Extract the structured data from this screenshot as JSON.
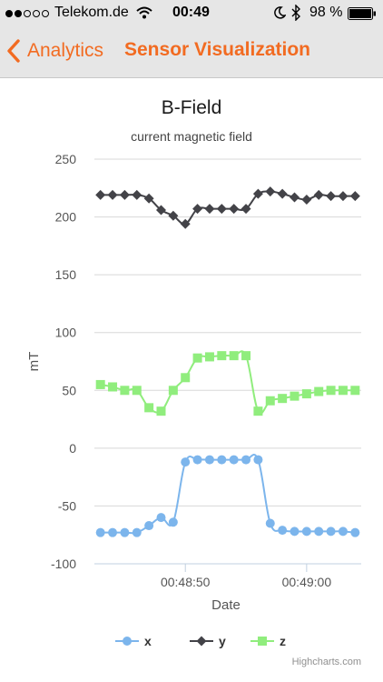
{
  "status_bar": {
    "carrier": "Telekom.de",
    "time": "00:49",
    "battery": "98 %",
    "signal_bars": 2,
    "icons": [
      "signal-dots",
      "wifi-icon",
      "moon-icon",
      "bluetooth-icon",
      "battery-icon"
    ]
  },
  "nav": {
    "back_label": "Analytics",
    "title": "Sensor Visualization",
    "accent_color": "#f26b21"
  },
  "chart_data": {
    "type": "line",
    "title": "B-Field",
    "subtitle": "current magnetic field",
    "xlabel": "Date",
    "ylabel": "mT",
    "ylim": [
      -100,
      250
    ],
    "yticks": [
      -100,
      -50,
      0,
      50,
      100,
      150,
      200,
      250
    ],
    "xticks": [
      "00:48:50",
      "00:49:00"
    ],
    "x": [
      "00:48:43",
      "00:48:44",
      "00:48:45",
      "00:48:46",
      "00:48:47",
      "00:48:48",
      "00:48:49",
      "00:48:50",
      "00:48:51",
      "00:48:52",
      "00:48:53",
      "00:48:54",
      "00:48:55",
      "00:48:56",
      "00:48:57",
      "00:48:58",
      "00:48:59",
      "00:49:00",
      "00:49:01",
      "00:49:02",
      "00:49:03",
      "00:49:04"
    ],
    "grid": true,
    "legend_position": "bottom-center",
    "series": [
      {
        "name": "x",
        "color": "#7cb5ec",
        "marker": "circle",
        "values": [
          -73,
          -73,
          -73,
          -73,
          -67,
          -60,
          -64,
          -12,
          -10,
          -10,
          -10,
          -10,
          -10,
          -10,
          -65,
          -71,
          -72,
          -72,
          -72,
          -72,
          -72,
          -73
        ]
      },
      {
        "name": "y",
        "color": "#434348",
        "marker": "diamond",
        "values": [
          219,
          219,
          219,
          219,
          216,
          206,
          201,
          194,
          207,
          207,
          207,
          207,
          207,
          220,
          222,
          220,
          217,
          215,
          219,
          218,
          218,
          218
        ]
      },
      {
        "name": "z",
        "color": "#90ed7d",
        "marker": "square",
        "values": [
          55,
          53,
          50,
          50,
          35,
          32,
          50,
          61,
          78,
          79,
          80,
          80,
          80,
          32,
          41,
          43,
          45,
          47,
          49,
          50,
          50,
          50
        ]
      }
    ],
    "credits": "Highcharts.com"
  }
}
